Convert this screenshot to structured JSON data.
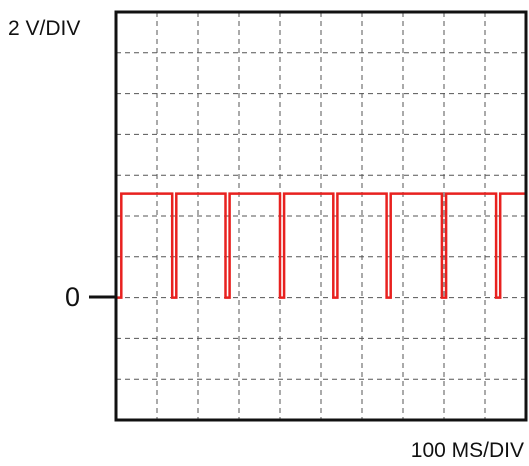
{
  "chart_data": {
    "type": "line",
    "y_scale_label": "2 V/DIV",
    "x_scale_label": "100 MS/DIV",
    "zero_marker_label": "0",
    "grid": true,
    "grid_style": "dashed",
    "divisions": {
      "x": 10,
      "y": 10
    },
    "xlim": [
      0,
      10
    ],
    "ylim": [
      -3,
      7
    ],
    "series": [
      {
        "color": "#e8211f",
        "x": [
          0,
          0.13,
          0.13,
          1.37,
          1.37,
          1.47,
          1.47,
          2.67,
          2.67,
          2.77,
          2.77,
          4.0,
          4.0,
          4.1,
          4.1,
          5.3,
          5.3,
          5.4,
          5.4,
          6.6,
          6.6,
          6.7,
          6.7,
          7.95,
          7.95,
          8.05,
          8.05,
          9.27,
          9.27,
          9.37,
          9.37,
          10.0
        ],
        "y": [
          0,
          0,
          2.55,
          2.55,
          0,
          0,
          2.55,
          2.55,
          0,
          0,
          2.55,
          2.55,
          0,
          0,
          2.55,
          2.55,
          0,
          0,
          2.55,
          2.55,
          0,
          0,
          2.55,
          2.55,
          0,
          0,
          2.55,
          2.55,
          0,
          0,
          2.55,
          2.55
        ]
      }
    ]
  },
  "colors": {
    "trace": "#e8211f",
    "frame": "#111111",
    "grid": "#555555"
  }
}
